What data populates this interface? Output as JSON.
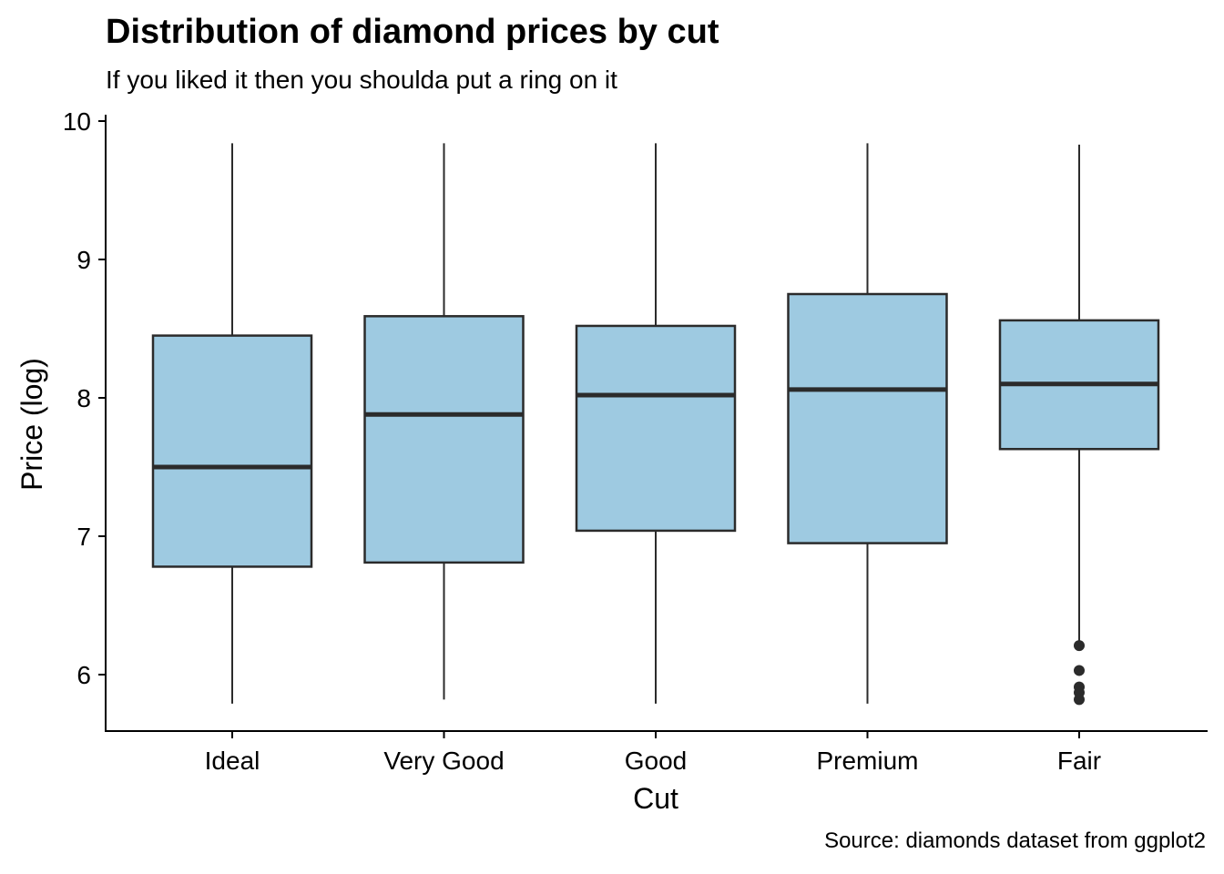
{
  "chart_data": {
    "type": "boxplot",
    "title": "Distribution of diamond prices by cut",
    "subtitle": "If you liked it then you shoulda put a ring on it",
    "caption": "Source: diamonds dataset from ggplot2",
    "xlabel": "Cut",
    "ylabel": "Price (log)",
    "categories": [
      "Ideal",
      "Very Good",
      "Good",
      "Premium",
      "Fair"
    ],
    "ylim": [
      5.6,
      10.05
    ],
    "yticks": [
      6,
      7,
      8,
      9,
      10
    ],
    "box_fill": "#9ecae1",
    "box_stroke": "#2b2b2b",
    "grid": false,
    "boxes": [
      {
        "category": "Ideal",
        "whisker_low": 5.79,
        "q1": 6.78,
        "median": 7.5,
        "q3": 8.45,
        "whisker_high": 9.84,
        "outliers": []
      },
      {
        "category": "Very Good",
        "whisker_low": 5.82,
        "q1": 6.81,
        "median": 7.88,
        "q3": 8.59,
        "whisker_high": 9.84,
        "outliers": []
      },
      {
        "category": "Good",
        "whisker_low": 5.79,
        "q1": 7.04,
        "median": 8.02,
        "q3": 8.52,
        "whisker_high": 9.84,
        "outliers": []
      },
      {
        "category": "Premium",
        "whisker_low": 5.79,
        "q1": 6.95,
        "median": 8.06,
        "q3": 8.75,
        "whisker_high": 9.84,
        "outliers": []
      },
      {
        "category": "Fair",
        "whisker_low": 6.24,
        "q1": 7.63,
        "median": 8.1,
        "q3": 8.56,
        "whisker_high": 9.83,
        "outliers": [
          6.21,
          6.03,
          5.91,
          5.87,
          5.82
        ]
      }
    ]
  }
}
